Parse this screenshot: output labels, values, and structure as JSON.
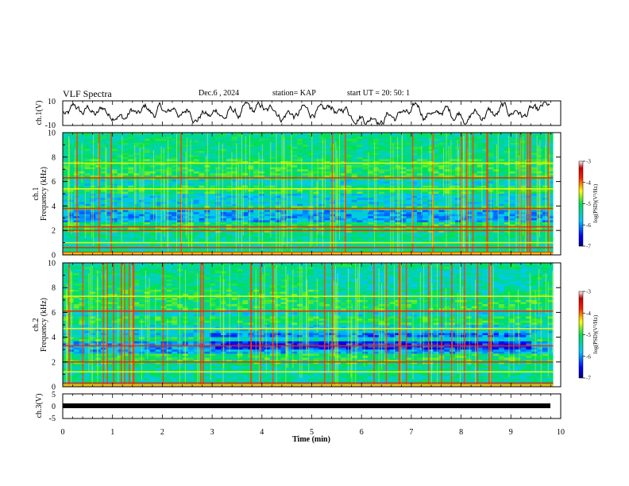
{
  "header": {
    "title": "VLF Spectra",
    "date": "Dec.6  , 2024",
    "station": "station= KAP",
    "start": "start  UT  =   20: 50: 1"
  },
  "chart_data": [
    {
      "type": "line",
      "name": "channel-1-waveform",
      "ylabel": "ch.1(V)",
      "ylim": [
        -10,
        10
      ],
      "yticks": [
        "10",
        "-10"
      ],
      "xlim": [
        0,
        10
      ],
      "color": "#000000"
    },
    {
      "type": "heatmap",
      "name": "channel-1-spectrogram",
      "ylabel": "ch.1\nFrequency (kHz)",
      "ylabel_line1": "ch.1",
      "ylabel_line2": "Frequency (kHz)",
      "ylim": [
        0,
        10
      ],
      "yticks": [
        "0",
        "2",
        "4",
        "6",
        "8",
        "10"
      ],
      "xlim": [
        0,
        9.85
      ],
      "colorbar": {
        "label": "log(PSD)(V²/Hz)",
        "range": [
          -7,
          -3
        ],
        "ticks": [
          "-3",
          "-4",
          "-5",
          "-6",
          "-7"
        ]
      },
      "bands": [
        {
          "f": 0.2,
          "level": "high"
        },
        {
          "f": 0.6,
          "level": "high"
        },
        {
          "f": 1.0,
          "level": "mid"
        },
        {
          "f": 2.0,
          "level": "high"
        },
        {
          "f": 2.3,
          "level": "high"
        },
        {
          "f": 3.8,
          "level": "high"
        },
        {
          "f": 5.4,
          "level": "mid"
        },
        {
          "f": 6.3,
          "level": "high"
        },
        {
          "f": 7.5,
          "level": "mid"
        }
      ]
    },
    {
      "type": "heatmap",
      "name": "channel-2-spectrogram",
      "ylabel": "ch.2\nFrequency (kHz)",
      "ylabel_line1": "ch.2",
      "ylabel_line2": "Frequency (kHz)",
      "ylim": [
        0,
        10
      ],
      "yticks": [
        "0",
        "2",
        "4",
        "6",
        "8",
        "10"
      ],
      "xlim": [
        0,
        9.85
      ],
      "colorbar": {
        "label": "log(PSD)(V²/Hz)",
        "range": [
          -7,
          -3
        ],
        "ticks": [
          "-3",
          "-4",
          "-5",
          "-6",
          "-7"
        ]
      },
      "bands": [
        {
          "f": 0.3,
          "level": "high"
        },
        {
          "f": 1.2,
          "level": "mid"
        },
        {
          "f": 2.0,
          "level": "high"
        },
        {
          "f": 3.3,
          "level": "high"
        },
        {
          "f": 4.7,
          "level": "mid"
        },
        {
          "f": 6.1,
          "level": "high"
        },
        {
          "f": 7.3,
          "level": "mid"
        }
      ]
    },
    {
      "type": "line",
      "name": "channel-3-waveform",
      "ylabel": "ch.3(V)",
      "ylim": [
        -5,
        5
      ],
      "yticks": [
        "5",
        "0",
        "-5"
      ],
      "xlim": [
        0,
        10
      ],
      "color": "#000000"
    }
  ],
  "xaxis": {
    "label": "Time  (min)",
    "ticks": [
      "0",
      "1",
      "2",
      "3",
      "4",
      "5",
      "6",
      "7",
      "8",
      "9",
      "10"
    ],
    "range": [
      0,
      10
    ]
  }
}
